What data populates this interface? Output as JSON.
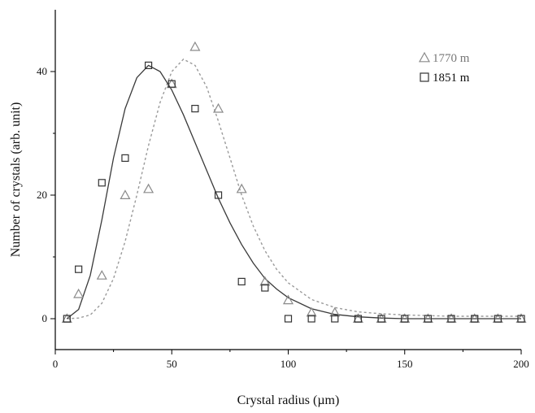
{
  "chart_data": {
    "type": "scatter",
    "title": "",
    "xlabel": "Crystal radius (µm)",
    "ylabel": "Number of crystals (arb. unit)",
    "xlim": [
      0,
      200
    ],
    "ylim": [
      -5,
      50
    ],
    "xticks": [
      0,
      50,
      100,
      150,
      200
    ],
    "yticks": [
      0,
      20,
      40
    ],
    "grid": false,
    "legend_position": "top-right",
    "series": [
      {
        "name": "1770 m",
        "marker": "triangle",
        "color": "#8a8a8a",
        "points": [
          {
            "x": 5,
            "y": 0
          },
          {
            "x": 10,
            "y": 4
          },
          {
            "x": 20,
            "y": 7
          },
          {
            "x": 30,
            "y": 20
          },
          {
            "x": 40,
            "y": 21
          },
          {
            "x": 50,
            "y": 38
          },
          {
            "x": 60,
            "y": 44
          },
          {
            "x": 70,
            "y": 34
          },
          {
            "x": 80,
            "y": 21
          },
          {
            "x": 90,
            "y": 6
          },
          {
            "x": 100,
            "y": 3
          },
          {
            "x": 110,
            "y": 1
          },
          {
            "x": 120,
            "y": 1
          },
          {
            "x": 130,
            "y": 0
          },
          {
            "x": 140,
            "y": 0
          },
          {
            "x": 150,
            "y": 0
          },
          {
            "x": 160,
            "y": 0
          },
          {
            "x": 170,
            "y": 0
          },
          {
            "x": 180,
            "y": 0
          },
          {
            "x": 190,
            "y": 0
          },
          {
            "x": 200,
            "y": 0
          }
        ],
        "fit": {
          "style": "dotted",
          "points": [
            {
              "x": 5,
              "y": 0
            },
            {
              "x": 10,
              "y": 0.1
            },
            {
              "x": 15,
              "y": 0.6
            },
            {
              "x": 20,
              "y": 2.5
            },
            {
              "x": 25,
              "y": 6.5
            },
            {
              "x": 30,
              "y": 12.5
            },
            {
              "x": 35,
              "y": 20
            },
            {
              "x": 40,
              "y": 28
            },
            {
              "x": 45,
              "y": 35
            },
            {
              "x": 50,
              "y": 40
            },
            {
              "x": 55,
              "y": 42
            },
            {
              "x": 60,
              "y": 41
            },
            {
              "x": 65,
              "y": 37.5
            },
            {
              "x": 70,
              "y": 32
            },
            {
              "x": 75,
              "y": 26
            },
            {
              "x": 80,
              "y": 20
            },
            {
              "x": 85,
              "y": 15
            },
            {
              "x": 90,
              "y": 11
            },
            {
              "x": 95,
              "y": 8
            },
            {
              "x": 100,
              "y": 5.8
            },
            {
              "x": 110,
              "y": 3.1
            },
            {
              "x": 120,
              "y": 1.8
            },
            {
              "x": 130,
              "y": 1.1
            },
            {
              "x": 140,
              "y": 0.8
            },
            {
              "x": 150,
              "y": 0.6
            },
            {
              "x": 170,
              "y": 0.4
            },
            {
              "x": 200,
              "y": 0.4
            }
          ]
        }
      },
      {
        "name": "1851 m",
        "marker": "square",
        "color": "#333333",
        "points": [
          {
            "x": 5,
            "y": 0
          },
          {
            "x": 10,
            "y": 8
          },
          {
            "x": 20,
            "y": 22
          },
          {
            "x": 30,
            "y": 26
          },
          {
            "x": 40,
            "y": 41
          },
          {
            "x": 50,
            "y": 38
          },
          {
            "x": 60,
            "y": 34
          },
          {
            "x": 70,
            "y": 20
          },
          {
            "x": 80,
            "y": 6
          },
          {
            "x": 90,
            "y": 5
          },
          {
            "x": 100,
            "y": 0
          },
          {
            "x": 110,
            "y": 0
          },
          {
            "x": 120,
            "y": 0
          },
          {
            "x": 130,
            "y": 0
          },
          {
            "x": 140,
            "y": 0
          },
          {
            "x": 150,
            "y": 0
          },
          {
            "x": 160,
            "y": 0
          },
          {
            "x": 170,
            "y": 0
          },
          {
            "x": 180,
            "y": 0
          },
          {
            "x": 190,
            "y": 0
          },
          {
            "x": 200,
            "y": 0
          }
        ],
        "fit": {
          "style": "solid",
          "points": [
            {
              "x": 5,
              "y": 0
            },
            {
              "x": 10,
              "y": 1.5
            },
            {
              "x": 15,
              "y": 7
            },
            {
              "x": 20,
              "y": 16
            },
            {
              "x": 25,
              "y": 26
            },
            {
              "x": 30,
              "y": 34
            },
            {
              "x": 35,
              "y": 39
            },
            {
              "x": 40,
              "y": 41
            },
            {
              "x": 45,
              "y": 40
            },
            {
              "x": 50,
              "y": 37
            },
            {
              "x": 55,
              "y": 33
            },
            {
              "x": 60,
              "y": 28.5
            },
            {
              "x": 65,
              "y": 24
            },
            {
              "x": 70,
              "y": 19.5
            },
            {
              "x": 75,
              "y": 15.5
            },
            {
              "x": 80,
              "y": 12
            },
            {
              "x": 85,
              "y": 9
            },
            {
              "x": 90,
              "y": 6.5
            },
            {
              "x": 95,
              "y": 4.8
            },
            {
              "x": 100,
              "y": 3.4
            },
            {
              "x": 110,
              "y": 1.6
            },
            {
              "x": 120,
              "y": 0.7
            },
            {
              "x": 130,
              "y": 0.3
            },
            {
              "x": 140,
              "y": 0.1
            },
            {
              "x": 150,
              "y": 0
            },
            {
              "x": 200,
              "y": 0
            }
          ]
        }
      }
    ]
  }
}
